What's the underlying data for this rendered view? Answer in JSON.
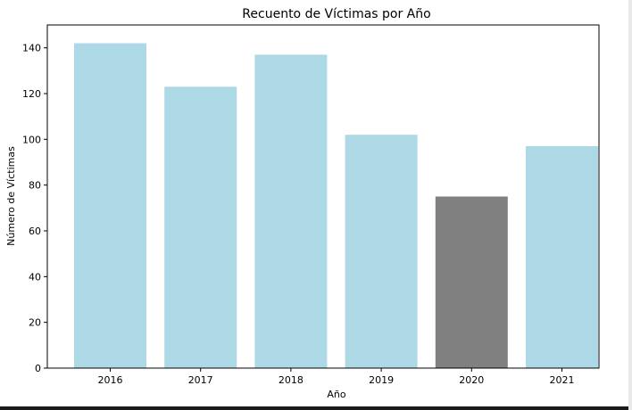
{
  "chart_data": {
    "type": "bar",
    "title": "Recuento de Víctimas por Año",
    "xlabel": "Año",
    "ylabel": "Número de Víctimas",
    "categories": [
      "2016",
      "2017",
      "2018",
      "2019",
      "2020",
      "2021"
    ],
    "values": [
      142,
      123,
      137,
      102,
      75,
      97
    ],
    "ylim": [
      0,
      150
    ],
    "yticks": [
      0,
      20,
      40,
      60,
      80,
      100,
      120,
      140
    ],
    "grid": false,
    "colors": {
      "default": "#add8e6",
      "highlight": "#808080"
    },
    "highlight_category": "2020"
  }
}
